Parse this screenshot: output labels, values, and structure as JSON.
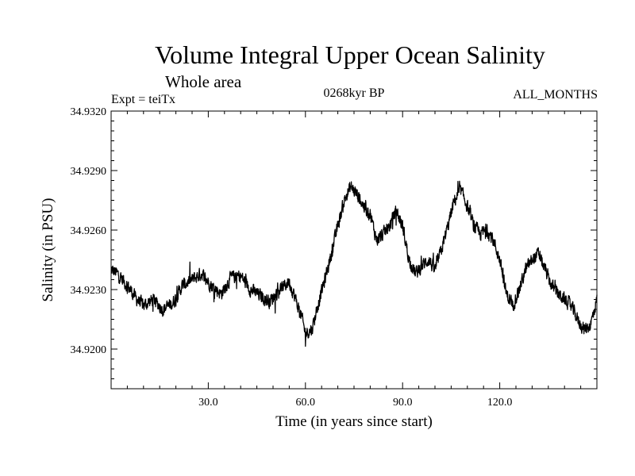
{
  "chart_data": {
    "type": "line",
    "title": "Volume Integral Upper Ocean Salinity",
    "subtitle": "Whole area",
    "annotations": {
      "experiment": "Expt = teiTx",
      "period": "0268kyr BP",
      "months": "ALL_MONTHS"
    },
    "xlabel": "Time (in years since start)",
    "ylabel": "Salinity (in PSU)",
    "xlim": [
      0,
      150
    ],
    "ylim": [
      34.918,
      34.932
    ],
    "x_ticks": [
      30,
      60,
      90,
      120
    ],
    "x_tick_labels": [
      "30.0",
      "60.0",
      "90.0",
      "120.0"
    ],
    "y_ticks": [
      34.92,
      34.923,
      34.926,
      34.929,
      34.932
    ],
    "y_tick_labels": [
      "34.9200",
      "34.9230",
      "34.9260",
      "34.9290",
      "34.9320"
    ],
    "grid": false,
    "series": [
      {
        "name": "Salinity",
        "noise_amplitude": 0.0006,
        "x": [
          0,
          2,
          5,
          8,
          10,
          13,
          16,
          19,
          22,
          25,
          28,
          31,
          34,
          37,
          40,
          43,
          46,
          49,
          52,
          55,
          57,
          59,
          60,
          62,
          64,
          66,
          68,
          70,
          72,
          74,
          76,
          78,
          80,
          82,
          84,
          86,
          88,
          90,
          92,
          94,
          96,
          98,
          100,
          102,
          104,
          106,
          108,
          110,
          112,
          114,
          116,
          118,
          120,
          122,
          124,
          126,
          128,
          130,
          132,
          134,
          136,
          138,
          140,
          142,
          144,
          146,
          148,
          150
        ],
        "values": [
          34.924,
          34.9238,
          34.9232,
          34.9225,
          34.9222,
          34.9225,
          34.922,
          34.9223,
          34.9232,
          34.9235,
          34.9238,
          34.9232,
          34.9228,
          34.9236,
          34.9237,
          34.923,
          34.9227,
          34.9224,
          34.923,
          34.9234,
          34.9225,
          34.9215,
          34.9208,
          34.921,
          34.9223,
          34.9235,
          34.9248,
          34.9262,
          34.9275,
          34.9282,
          34.9278,
          34.9272,
          34.9268,
          34.9255,
          34.9258,
          34.9262,
          34.927,
          34.9262,
          34.9245,
          34.9238,
          34.9242,
          34.9245,
          34.924,
          34.925,
          34.9262,
          34.9275,
          34.928,
          34.9272,
          34.9262,
          34.9258,
          34.926,
          34.9255,
          34.9245,
          34.9228,
          34.9222,
          34.923,
          34.924,
          34.9245,
          34.9248,
          34.924,
          34.9232,
          34.9228,
          34.9225,
          34.9222,
          34.9215,
          34.921,
          34.9212,
          34.9225
        ]
      }
    ]
  }
}
